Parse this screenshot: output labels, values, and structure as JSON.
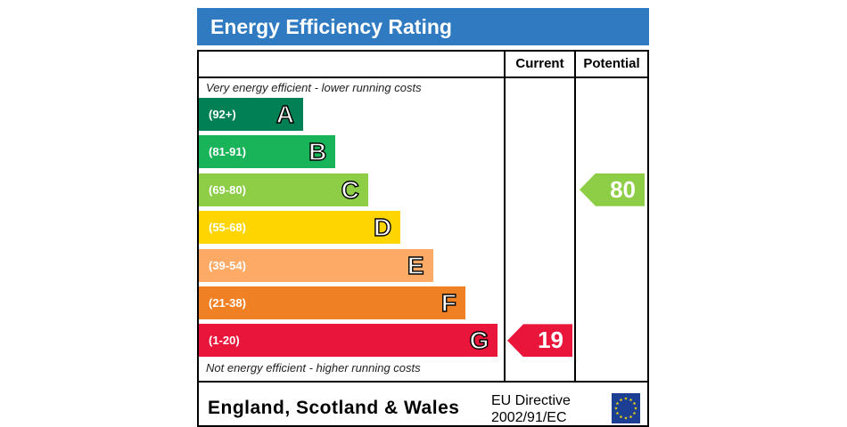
{
  "title": "Energy Efficiency Rating",
  "columns": {
    "current": "Current",
    "potential": "Potential"
  },
  "notes": {
    "top": "Very energy efficient - lower running costs",
    "bottom": "Not energy efficient - higher running costs"
  },
  "footer": {
    "country": "England, Scotland & Wales",
    "directive_line1": "EU Directive",
    "directive_line2": "2002/91/EC",
    "flag": "eu-flag-icon"
  },
  "chart_data": {
    "type": "bar",
    "categories": [
      "A",
      "B",
      "C",
      "D",
      "E",
      "F",
      "G"
    ],
    "ranges": [
      "(92+)",
      "(81-91)",
      "(69-80)",
      "(55-68)",
      "(39-54)",
      "(21-38)",
      "(1-20)"
    ],
    "relative_lengths": [
      1,
      2,
      3,
      4,
      5,
      6,
      7
    ],
    "colors": [
      "#008054",
      "#19b459",
      "#8dce46",
      "#ffd500",
      "#fcaa65",
      "#ef8023",
      "#e9153b"
    ],
    "current": {
      "value": 19,
      "band": "G",
      "color": "#e9153b"
    },
    "potential": {
      "value": 80,
      "band": "C",
      "color": "#8dce46"
    }
  }
}
